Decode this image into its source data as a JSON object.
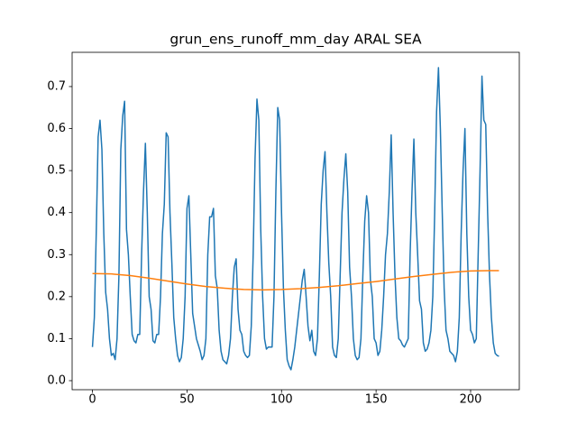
{
  "chart_data": {
    "type": "line",
    "title": "grun_ens_runoff_mm_day ARAL SEA",
    "xlim": [
      -10.75,
      225.75
    ],
    "xticks": [
      0,
      50,
      100,
      150,
      200
    ],
    "ylim": [
      -0.0215,
      0.7815
    ],
    "yticks": [
      {
        "value": 0,
        "label": "0.0"
      },
      0.1,
      0.2,
      0.3,
      0.4,
      0.5,
      0.6,
      0.7
    ],
    "series": [
      {
        "color": "#1f77b4",
        "x": [
          0,
          1,
          2,
          3,
          4,
          5,
          6,
          7,
          8,
          9,
          10,
          11,
          12,
          13,
          14,
          15,
          16,
          17,
          18,
          19,
          20,
          21,
          22,
          23,
          24,
          25,
          26,
          27,
          28,
          29,
          30,
          31,
          32,
          33,
          34,
          35,
          36,
          37,
          38,
          39,
          40,
          41,
          42,
          43,
          44,
          45,
          46,
          47,
          48,
          49,
          50,
          51,
          52,
          53,
          54,
          55,
          56,
          57,
          58,
          59,
          60,
          61,
          62,
          63,
          64,
          65,
          66,
          67,
          68,
          69,
          70,
          71,
          72,
          73,
          74,
          75,
          76,
          77,
          78,
          79,
          80,
          81,
          82,
          83,
          84,
          85,
          86,
          87,
          88,
          89,
          90,
          91,
          92,
          93,
          94,
          95,
          96,
          97,
          98,
          99,
          100,
          101,
          102,
          103,
          104,
          105,
          106,
          107,
          108,
          109,
          110,
          111,
          112,
          113,
          114,
          115,
          116,
          117,
          118,
          119,
          120,
          121,
          122,
          123,
          124,
          125,
          126,
          127,
          128,
          129,
          130,
          131,
          132,
          133,
          134,
          135,
          136,
          137,
          138,
          139,
          140,
          141,
          142,
          143,
          144,
          145,
          146,
          147,
          148,
          149,
          150,
          151,
          152,
          153,
          154,
          155,
          156,
          157,
          158,
          159,
          160,
          161,
          162,
          163,
          164,
          165,
          166,
          167,
          168,
          169,
          170,
          171,
          172,
          173,
          174,
          175,
          176,
          177,
          178,
          179,
          180,
          181,
          182,
          183,
          184,
          185,
          186,
          187,
          188,
          189,
          190,
          191,
          192,
          193,
          194,
          195,
          196,
          197,
          198,
          199,
          200,
          201,
          202,
          203,
          204,
          205,
          206,
          207,
          208,
          209,
          210,
          211,
          212,
          213,
          214,
          215
        ],
        "values": [
          0.08,
          0.15,
          0.35,
          0.58,
          0.62,
          0.55,
          0.35,
          0.21,
          0.17,
          0.1,
          0.06,
          0.065,
          0.05,
          0.1,
          0.25,
          0.55,
          0.63,
          0.665,
          0.36,
          0.3,
          0.2,
          0.11,
          0.095,
          0.09,
          0.11,
          0.11,
          0.3,
          0.45,
          0.565,
          0.4,
          0.2,
          0.17,
          0.095,
          0.09,
          0.11,
          0.11,
          0.2,
          0.35,
          0.42,
          0.59,
          0.58,
          0.4,
          0.28,
          0.15,
          0.1,
          0.06,
          0.045,
          0.055,
          0.1,
          0.2,
          0.41,
          0.44,
          0.3,
          0.16,
          0.13,
          0.1,
          0.085,
          0.07,
          0.05,
          0.06,
          0.1,
          0.3,
          0.39,
          0.39,
          0.41,
          0.25,
          0.22,
          0.12,
          0.07,
          0.05,
          0.045,
          0.04,
          0.06,
          0.1,
          0.2,
          0.27,
          0.29,
          0.17,
          0.12,
          0.11,
          0.07,
          0.06,
          0.055,
          0.06,
          0.13,
          0.3,
          0.53,
          0.67,
          0.62,
          0.36,
          0.2,
          0.1,
          0.075,
          0.08,
          0.08,
          0.08,
          0.2,
          0.45,
          0.65,
          0.62,
          0.4,
          0.22,
          0.12,
          0.05,
          0.035,
          0.026,
          0.05,
          0.08,
          0.12,
          0.16,
          0.2,
          0.24,
          0.265,
          0.2,
          0.13,
          0.095,
          0.12,
          0.07,
          0.06,
          0.1,
          0.25,
          0.42,
          0.5,
          0.545,
          0.4,
          0.28,
          0.2,
          0.08,
          0.06,
          0.055,
          0.1,
          0.25,
          0.4,
          0.48,
          0.54,
          0.45,
          0.27,
          0.2,
          0.1,
          0.06,
          0.05,
          0.055,
          0.1,
          0.25,
          0.38,
          0.44,
          0.4,
          0.24,
          0.2,
          0.1,
          0.09,
          0.06,
          0.07,
          0.12,
          0.2,
          0.3,
          0.35,
          0.45,
          0.585,
          0.4,
          0.25,
          0.15,
          0.1,
          0.095,
          0.085,
          0.08,
          0.09,
          0.1,
          0.3,
          0.45,
          0.575,
          0.4,
          0.3,
          0.19,
          0.17,
          0.09,
          0.07,
          0.075,
          0.09,
          0.12,
          0.2,
          0.4,
          0.64,
          0.745,
          0.6,
          0.4,
          0.22,
          0.12,
          0.1,
          0.07,
          0.065,
          0.06,
          0.045,
          0.07,
          0.15,
          0.35,
          0.5,
          0.6,
          0.35,
          0.2,
          0.12,
          0.11,
          0.09,
          0.1,
          0.3,
          0.5,
          0.725,
          0.62,
          0.61,
          0.4,
          0.25,
          0.15,
          0.09,
          0.065,
          0.06,
          0.058
        ]
      },
      {
        "color": "#ff7f0e",
        "x": [
          0,
          10,
          20,
          30,
          40,
          50,
          60,
          70,
          80,
          90,
          100,
          110,
          120,
          130,
          140,
          150,
          160,
          170,
          180,
          190,
          200,
          210,
          215
        ],
        "values": [
          0.255,
          0.254,
          0.25,
          0.244,
          0.237,
          0.23,
          0.224,
          0.22,
          0.217,
          0.216,
          0.217,
          0.219,
          0.222,
          0.226,
          0.231,
          0.236,
          0.242,
          0.248,
          0.253,
          0.258,
          0.261,
          0.262,
          0.262
        ]
      }
    ]
  }
}
